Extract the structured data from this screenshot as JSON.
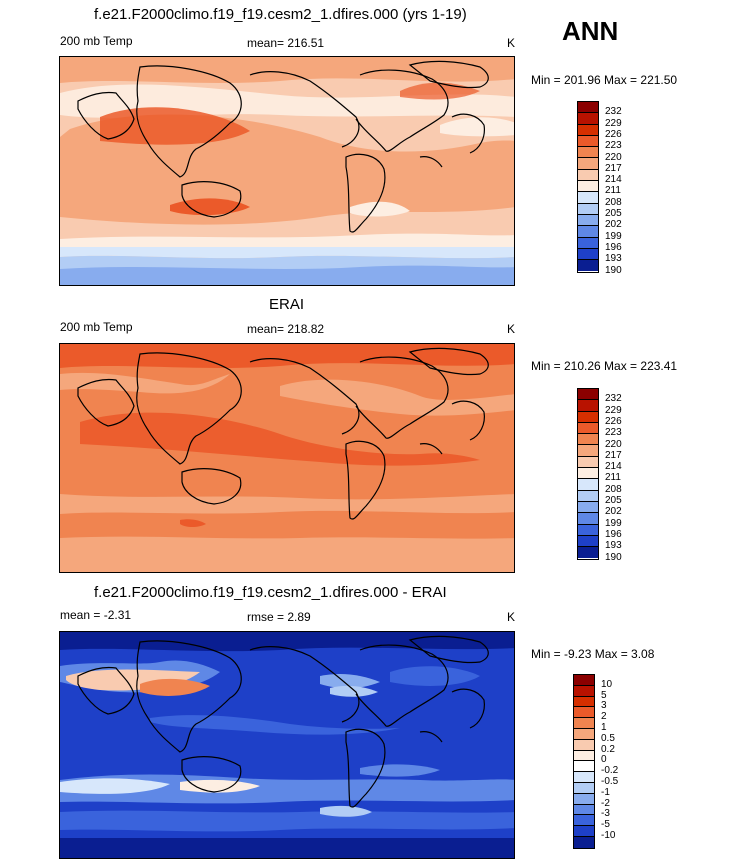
{
  "season": "ANN",
  "panels": [
    {
      "title": "f.e21.F2000climo.f19_f19.cesm2_1.dfires.000 (yrs 1-19)",
      "left_label": "200 mb Temp",
      "center_label": "mean= 216.51",
      "units": "K",
      "minmax": "Min = 201.96 Max = 221.50",
      "levels": [
        "232",
        "229",
        "226",
        "223",
        "220",
        "217",
        "214",
        "211",
        "208",
        "205",
        "202",
        "199",
        "196",
        "193",
        "190"
      ],
      "colors": [
        "#8b0000",
        "#b81200",
        "#d62f00",
        "#eb5a2a",
        "#f08450",
        "#f5a77c",
        "#f9cbb0",
        "#fdeee2",
        "#d7e7fb",
        "#b2cdf5",
        "#88acee",
        "#5f88e6",
        "#3a63dc",
        "#1e40c8",
        "#0a1e91"
      ]
    },
    {
      "title": "ERAI",
      "left_label": "200 mb Temp",
      "center_label": "mean= 218.82",
      "units": "K",
      "minmax": "Min = 210.26 Max = 223.41",
      "levels": [
        "232",
        "229",
        "226",
        "223",
        "220",
        "217",
        "214",
        "211",
        "208",
        "205",
        "202",
        "199",
        "196",
        "193",
        "190"
      ],
      "colors": [
        "#8b0000",
        "#b81200",
        "#d62f00",
        "#eb5a2a",
        "#f08450",
        "#f5a77c",
        "#f9cbb0",
        "#fdeee2",
        "#d7e7fb",
        "#b2cdf5",
        "#88acee",
        "#5f88e6",
        "#3a63dc",
        "#1e40c8",
        "#0a1e91"
      ]
    },
    {
      "title": "f.e21.F2000climo.f19_f19.cesm2_1.dfires.000 - ERAI",
      "left_label": "mean =  -2.31",
      "center_label": "rmse =   2.89",
      "units": "K",
      "minmax": "Min =  -9.23 Max =   3.08",
      "levels": [
        "10",
        "5",
        "3",
        "2",
        "1",
        "0.5",
        "0.2",
        "0",
        "-0.2",
        "-0.5",
        "-1",
        "-2",
        "-3",
        "-5",
        "-10"
      ],
      "colors": [
        "#8b0000",
        "#b81200",
        "#d62f00",
        "#eb5a2a",
        "#f08450",
        "#f5a77c",
        "#f9cbb0",
        "#fdeee2",
        "#ffffff",
        "#d7e7fb",
        "#b2cdf5",
        "#88acee",
        "#5f88e6",
        "#3a63dc",
        "#1e40c8",
        "#0a1e91"
      ]
    }
  ]
}
